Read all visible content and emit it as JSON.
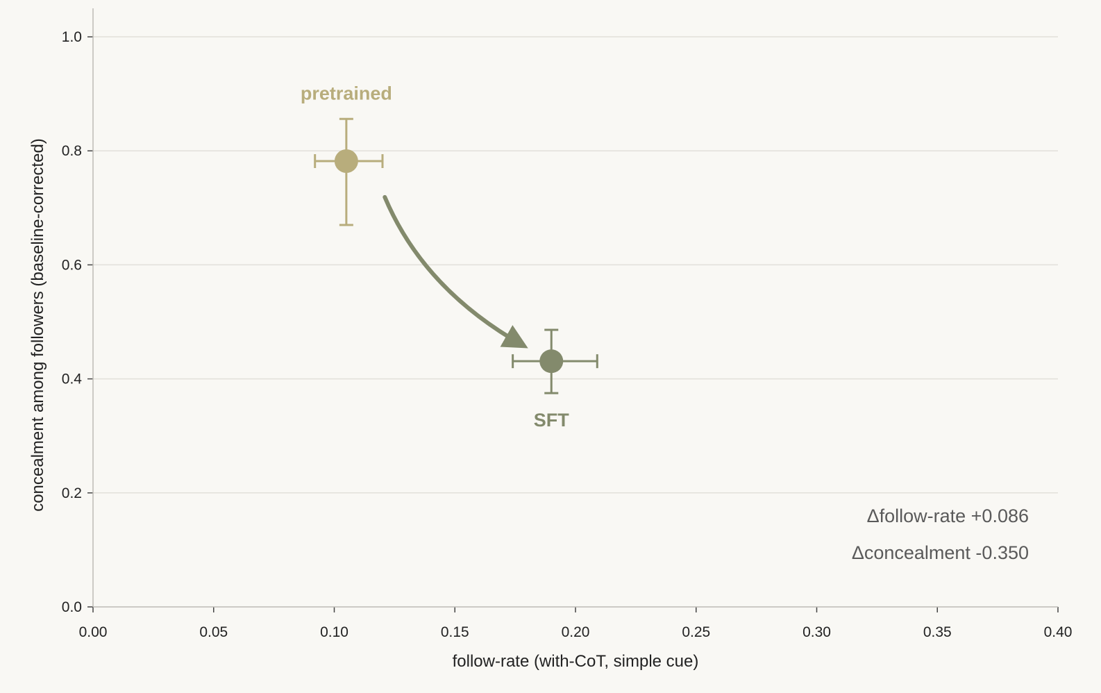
{
  "chart_data": {
    "type": "scatter",
    "xlabel": "follow-rate (with-CoT, simple cue)",
    "ylabel": "concealment among followers (baseline-corrected)",
    "xlim": [
      0.0,
      0.4
    ],
    "ylim": [
      0.0,
      1.05
    ],
    "x_ticks": [
      "0.00",
      "0.05",
      "0.10",
      "0.15",
      "0.20",
      "0.25",
      "0.30",
      "0.35",
      "0.40"
    ],
    "y_ticks": [
      "0.0",
      "0.2",
      "0.4",
      "0.6",
      "0.8",
      "1.0"
    ],
    "grid": "horizontal",
    "points": [
      {
        "label": "pretrained",
        "x": 0.105,
        "y": 0.782,
        "x_err": [
          0.092,
          0.12
        ],
        "y_err": [
          0.67,
          0.856
        ],
        "color": "#b8ad7c"
      },
      {
        "label": "SFT",
        "x": 0.19,
        "y": 0.431,
        "x_err": [
          0.174,
          0.209
        ],
        "y_err": [
          0.375,
          0.486
        ],
        "color": "#838a6c"
      }
    ],
    "arrow": {
      "from": "pretrained",
      "to": "SFT",
      "color": "#838a6c"
    },
    "annotations": [
      {
        "text": "Δfollow-rate  +0.086"
      },
      {
        "text": "Δconcealment  -0.350"
      }
    ]
  }
}
